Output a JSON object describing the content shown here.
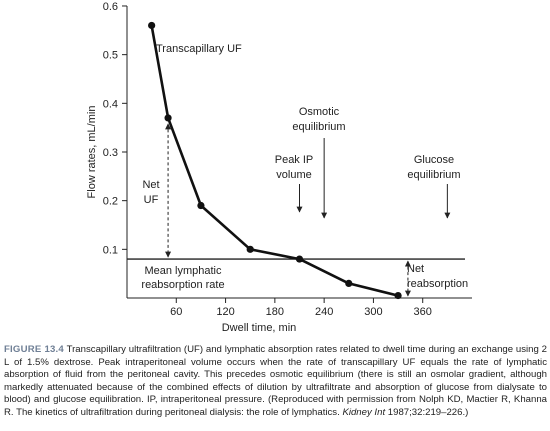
{
  "chart_data": {
    "type": "line",
    "xlabel": "Dwell time, min",
    "ylabel": "Flow rates, mL/min",
    "xlim": [
      0,
      420
    ],
    "ylim": [
      0,
      0.6
    ],
    "x_ticks": [
      "60",
      "120",
      "180",
      "240",
      "300",
      "360"
    ],
    "x_tick_values": [
      60,
      120,
      180,
      240,
      300,
      360
    ],
    "y_ticks": [
      "0.1",
      "0.2",
      "0.3",
      "0.4",
      "0.5",
      "0.6"
    ],
    "y_tick_values": [
      0.1,
      0.2,
      0.3,
      0.4,
      0.5,
      0.6
    ],
    "series": [
      {
        "name": "Transcapillary UF",
        "x": [
          30,
          50,
          90,
          150,
          210,
          270,
          330
        ],
        "y": [
          0.56,
          0.37,
          0.19,
          0.1,
          0.08,
          0.03,
          0.005
        ]
      }
    ],
    "lymphatic_rate": 0.08,
    "annotations": {
      "transcapillary": "Transcapillary UF",
      "osmotic_1": "Osmotic",
      "osmotic_2": "equilibrium",
      "osmotic_x": 240,
      "peak_1": "Peak IP",
      "peak_2": "volume",
      "peak_x": 210,
      "glucose_1": "Glucose",
      "glucose_2": "equilibrium",
      "glucose_x": 390,
      "net_uf_1": "Net",
      "net_uf_2": "UF",
      "net_uf_x": 50,
      "lymph_1": "Mean lymphatic",
      "lymph_2": "reabsorption rate",
      "net_reabs_1": "Net",
      "net_reabs_2": "reabsorption",
      "net_reabs_x": 342
    }
  },
  "caption": {
    "figure_label": "FIGURE 13.4",
    "text_main": " Transcapillary ultrafiltration (UF) and lymphatic absorption rates related to dwell time during an exchange using 2 L of 1.5% dextrose. Peak intraperitoneal volume occurs when the rate of transcapillary UF equals the rate of lymphatic absorption of fluid from the peritoneal cavity. This precedes osmotic equilibrium (there is still an osmolar gradient, although markedly attenuated because of the combined effects of dilution by ultrafiltrate and absorption of glucose from dialysate to blood) and glucose equilibration. IP, intraperitoneal pressure. (Reproduced with permission from Nolph KD, Mactier R, Khanna R. The kinetics of ultrafiltration during peritoneal dialysis: the role of lymphatics. ",
    "journal": "Kidney Int",
    "text_end": " 1987;32:219–226.)"
  }
}
